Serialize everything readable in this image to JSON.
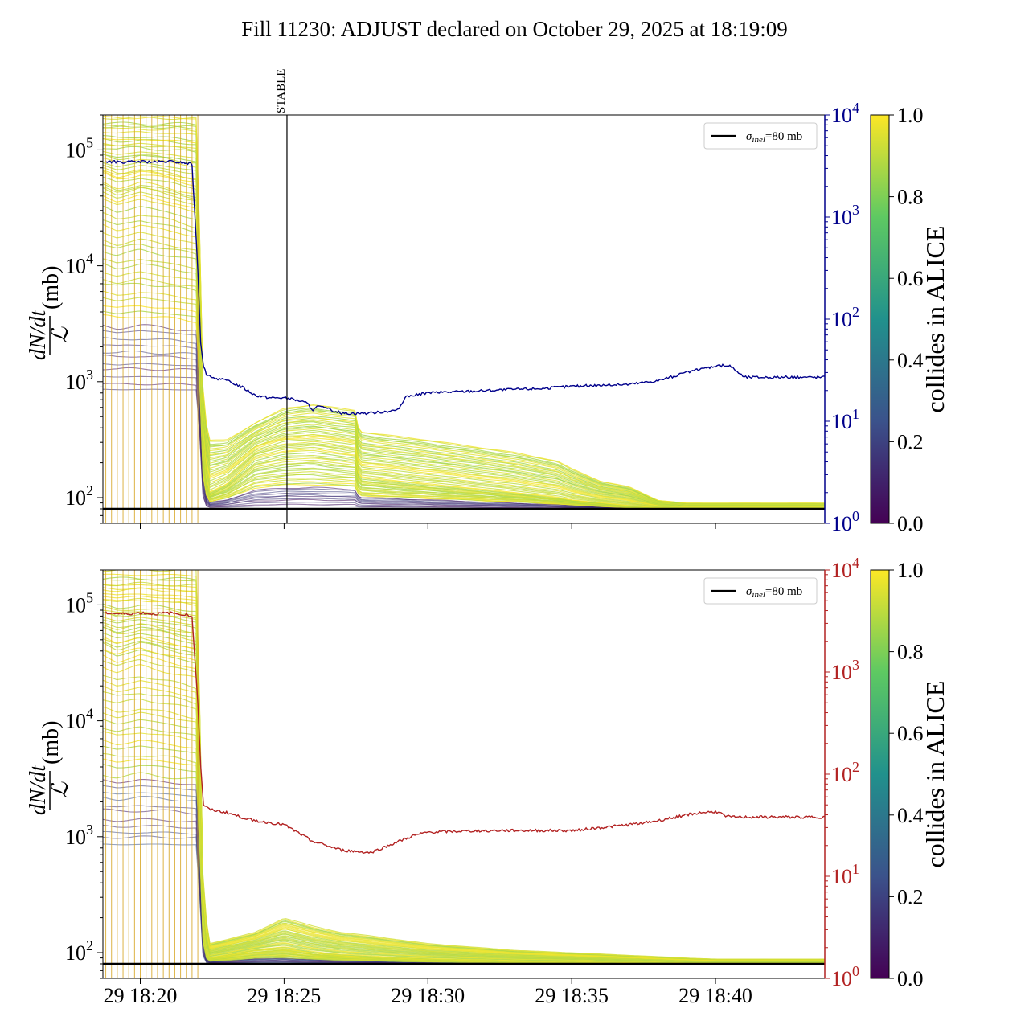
{
  "figure": {
    "title": "Fill 11230: ADJUST declared on October 29, 2025 at 18:19:09"
  },
  "colors": {
    "top_line": "#00008b",
    "bottom_line": "#b22222",
    "reference_line": "#000000",
    "colormap": [
      "#440154",
      "#3b528b",
      "#21918c",
      "#5ec962",
      "#fde725"
    ]
  },
  "chart_data": [
    {
      "type": "line",
      "panel": "top",
      "title": "",
      "xlabel": "",
      "x_ticks": [
        "29 18:20",
        "29 18:25",
        "29 18:30",
        "29 18:35",
        "29 18:40"
      ],
      "x_show_tick_labels": false,
      "x_range_minutes": [
        -1.3,
        23.8
      ],
      "ylabel_left": "dN/dt / ℒ (mb)",
      "ylabel_left_parts": {
        "numerator": "dN/dt",
        "denominator": "ℒ",
        "unit": "(mb)"
      },
      "ylim_left": [
        60,
        200000
      ],
      "yscale_left": "log",
      "y_left_ticks": [
        {
          "base": "10",
          "exp": "2",
          "value": 100
        },
        {
          "base": "10",
          "exp": "3",
          "value": 1000
        },
        {
          "base": "10",
          "exp": "4",
          "value": 10000
        },
        {
          "base": "10",
          "exp": "5",
          "value": 100000
        }
      ],
      "ylim_right": [
        1,
        10000
      ],
      "yscale_right": "log",
      "y_right_ticks": [
        {
          "base": "10",
          "exp": "0",
          "value": 1
        },
        {
          "base": "10",
          "exp": "1",
          "value": 10
        },
        {
          "base": "10",
          "exp": "2",
          "value": 100
        },
        {
          "base": "10",
          "exp": "3",
          "value": 1000
        },
        {
          "base": "10",
          "exp": "4",
          "value": 10000
        }
      ],
      "reference_value_mb": 80,
      "legend": {
        "label_symbol": "σ",
        "label_subscript": "inel",
        "label_rest": "=80 mb",
        "placement": "upper right"
      },
      "event_marker": {
        "label": "STABLE",
        "x_minute": 5.1
      },
      "colorbar": {
        "label": "collides in ALICE",
        "range": [
          0,
          1
        ],
        "ticks": [
          "0.0",
          "0.2",
          "0.4",
          "0.6",
          "0.8",
          "1.0"
        ]
      },
      "series_right": {
        "name": "",
        "x_minutes": [
          -1.2,
          -0.5,
          0.0,
          0.5,
          1.0,
          1.5,
          1.8,
          2.0,
          2.1,
          2.2,
          2.3,
          2.5,
          3.0,
          3.5,
          4.0,
          4.5,
          5.0,
          5.5,
          5.8,
          6.0,
          6.2,
          7.0,
          8.0,
          9.0,
          9.2,
          9.5,
          10.0,
          12.0,
          14.0,
          15.0,
          17.0,
          18.0,
          19.0,
          20.0,
          20.5,
          21.0,
          23.8
        ],
        "values": [
          3500,
          3450,
          3500,
          3450,
          3500,
          3400,
          3300,
          300,
          60,
          35,
          28,
          27,
          25,
          22,
          18,
          17,
          17,
          16,
          15,
          13,
          14,
          12,
          12,
          13,
          17,
          18,
          19,
          20,
          21,
          22,
          23,
          25,
          30,
          35,
          35,
          27,
          27
        ]
      },
      "band": {
        "note": "per-bunch normalized rates coloured by collides in ALICE",
        "x_minutes": [
          -1.3,
          -0.8,
          0.0,
          1.0,
          2.0,
          2.1,
          2.2,
          2.4,
          3.0,
          4.0,
          5.0,
          6.0,
          7.0,
          7.5,
          7.6,
          10.0,
          13.0,
          14.5,
          15.0,
          16.0,
          17.0,
          18.0,
          19.0,
          20.0,
          23.8
        ],
        "upper": [
          200000,
          200000,
          200000,
          200000,
          200000,
          5000,
          600,
          320,
          320,
          450,
          600,
          650,
          600,
          580,
          380,
          320,
          250,
          210,
          180,
          140,
          125,
          95,
          90,
          90,
          90
        ],
        "median": [
          40000,
          35000,
          40000,
          35000,
          30000,
          2000,
          200,
          110,
          130,
          220,
          250,
          260,
          240,
          230,
          150,
          130,
          110,
          100,
          95,
          90,
          85,
          82,
          81,
          81,
          81
        ],
        "lower": [
          800,
          800,
          800,
          800,
          800,
          200,
          85,
          82,
          82,
          83,
          83,
          83,
          83,
          83,
          82,
          82,
          81,
          81,
          81,
          80,
          80,
          80,
          80,
          80,
          80
        ]
      }
    },
    {
      "type": "line",
      "panel": "bottom",
      "title": "",
      "xlabel": "",
      "x_ticks": [
        "29 18:20",
        "29 18:25",
        "29 18:30",
        "29 18:35",
        "29 18:40"
      ],
      "x_show_tick_labels": true,
      "x_range_minutes": [
        -1.3,
        23.8
      ],
      "ylabel_left": "dN/dt / ℒ (mb)",
      "ylabel_left_parts": {
        "numerator": "dN/dt",
        "denominator": "ℒ",
        "unit": "(mb)"
      },
      "ylim_left": [
        60,
        200000
      ],
      "yscale_left": "log",
      "y_left_ticks": [
        {
          "base": "10",
          "exp": "2",
          "value": 100
        },
        {
          "base": "10",
          "exp": "3",
          "value": 1000
        },
        {
          "base": "10",
          "exp": "4",
          "value": 10000
        },
        {
          "base": "10",
          "exp": "5",
          "value": 100000
        }
      ],
      "ylim_right": [
        1,
        10000
      ],
      "yscale_right": "log",
      "y_right_ticks": [
        {
          "base": "10",
          "exp": "0",
          "value": 1
        },
        {
          "base": "10",
          "exp": "1",
          "value": 10
        },
        {
          "base": "10",
          "exp": "2",
          "value": 100
        },
        {
          "base": "10",
          "exp": "3",
          "value": 1000
        },
        {
          "base": "10",
          "exp": "4",
          "value": 10000
        }
      ],
      "reference_value_mb": 80,
      "legend": {
        "label_symbol": "σ",
        "label_subscript": "inel",
        "label_rest": "=80 mb",
        "placement": "upper right"
      },
      "colorbar": {
        "label": "collides in ALICE",
        "range": [
          0,
          1
        ],
        "ticks": [
          "0.0",
          "0.2",
          "0.4",
          "0.6",
          "0.8",
          "1.0"
        ]
      },
      "series_right": {
        "name": "",
        "x_minutes": [
          -1.2,
          -0.5,
          0.0,
          0.5,
          1.0,
          1.5,
          1.8,
          2.0,
          2.1,
          2.2,
          2.4,
          3.0,
          3.5,
          4.0,
          5.0,
          6.0,
          7.0,
          8.0,
          9.0,
          9.5,
          10.0,
          12.0,
          14.0,
          15.0,
          17.0,
          18.0,
          19.0,
          19.5,
          20.0,
          20.5,
          23.8
        ],
        "values": [
          3800,
          3700,
          3800,
          3700,
          3800,
          3700,
          3500,
          500,
          120,
          50,
          45,
          42,
          38,
          35,
          32,
          22,
          18,
          17,
          22,
          25,
          27,
          28,
          28,
          28,
          32,
          35,
          40,
          42,
          43,
          38,
          38
        ]
      },
      "band": {
        "note": "per-bunch normalized rates coloured by collides in ALICE",
        "x_minutes": [
          -1.3,
          -0.8,
          0.0,
          1.0,
          2.0,
          2.1,
          2.2,
          2.4,
          3.0,
          4.0,
          5.0,
          6.0,
          7.0,
          8.0,
          10.0,
          13.0,
          15.0,
          17.0,
          19.0,
          20.0,
          23.8
        ],
        "upper": [
          200000,
          200000,
          200000,
          200000,
          200000,
          3000,
          300,
          120,
          130,
          150,
          200,
          170,
          150,
          140,
          120,
          105,
          100,
          95,
          90,
          88,
          88
        ],
        "median": [
          40000,
          35000,
          40000,
          35000,
          30000,
          1500,
          120,
          90,
          95,
          105,
          110,
          100,
          95,
          92,
          88,
          85,
          84,
          82,
          81,
          81,
          81
        ],
        "lower": [
          800,
          800,
          800,
          800,
          800,
          150,
          82,
          81,
          81,
          81,
          81,
          81,
          81,
          81,
          80,
          80,
          80,
          80,
          80,
          80,
          80
        ]
      }
    }
  ]
}
